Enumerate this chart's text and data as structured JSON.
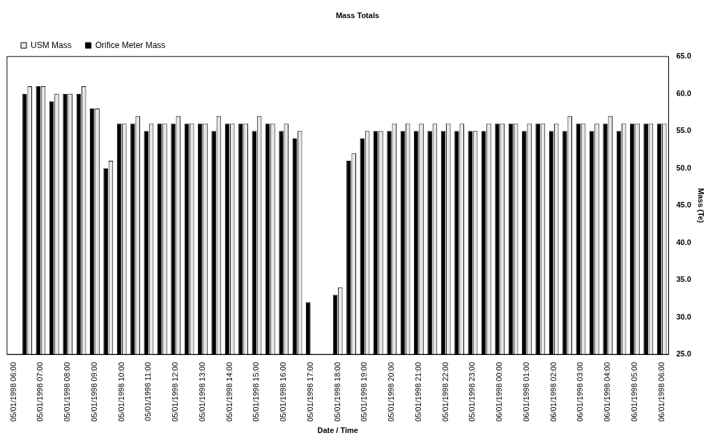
{
  "chart_data": {
    "type": "bar",
    "title": "Mass Totals",
    "xlabel": "Date / Time",
    "ylabel": "Mass (Te)",
    "categories": [
      "05/01/1998 06:00",
      null,
      "05/01/1998 07:00",
      null,
      "05/01/1998 08:00",
      null,
      "05/01/1998 09:00",
      null,
      "05/01/1998 10:00",
      null,
      "05/01/1998 11:00",
      null,
      "05/01/1998 12:00",
      null,
      "05/01/1998 13:00",
      null,
      "05/01/1998 14:00",
      null,
      "05/01/1998 15:00",
      null,
      "05/01/1998 16:00",
      null,
      "05/01/1998 17:00",
      null,
      "05/01/1998 18:00",
      null,
      "05/01/1998 19:00",
      null,
      "05/01/1998 20:00",
      null,
      "05/01/1998 21:00",
      null,
      "05/01/1998 22:00",
      null,
      "05/01/1998 23:00",
      null,
      "06/01/1998 00:00",
      null,
      "06/01/1998 01:00",
      null,
      "06/01/1998 02:00",
      null,
      "06/01/1998 03:00",
      null,
      "06/01/1998 04:00",
      null,
      "06/01/1998 05:00",
      null,
      "06/01/1998 06:00"
    ],
    "series": [
      {
        "name": "Orifice Meter Mass",
        "color": "#000000",
        "values": [
          null,
          60,
          61,
          59,
          60,
          60,
          58,
          50,
          56,
          56,
          55,
          56,
          56,
          56,
          56,
          55,
          56,
          56,
          55,
          56,
          55,
          54,
          32,
          null,
          33,
          51,
          54,
          55,
          55,
          55,
          55,
          55,
          55,
          55,
          55,
          55,
          56,
          56,
          55,
          56,
          55,
          55,
          56,
          55,
          56,
          55,
          56,
          56,
          56
        ]
      },
      {
        "name": "USM Mass",
        "color": "#e6e6e6",
        "values": [
          null,
          61,
          61,
          60,
          60,
          61,
          58,
          51,
          56,
          57,
          56,
          56,
          57,
          56,
          56,
          57,
          56,
          56,
          57,
          56,
          56,
          55,
          null,
          null,
          34,
          52,
          55,
          55,
          56,
          56,
          56,
          56,
          56,
          56,
          55,
          56,
          56,
          56,
          56,
          56,
          56,
          57,
          56,
          56,
          57,
          56,
          56,
          56,
          56
        ]
      }
    ],
    "ylim": [
      25,
      65
    ],
    "yticks": [
      {
        "value": 25,
        "label": "25.0"
      },
      {
        "value": 30,
        "label": "30.0"
      },
      {
        "value": 35,
        "label": "35.0"
      },
      {
        "value": 40,
        "label": "40.0"
      },
      {
        "value": 45,
        "label": "45.0"
      },
      {
        "value": 50,
        "label": "50.0"
      },
      {
        "value": 55,
        "label": "55.0"
      },
      {
        "value": 60,
        "label": "60.0"
      },
      {
        "value": 65,
        "label": "65.0"
      }
    ],
    "legend": "top left",
    "grid": false
  }
}
